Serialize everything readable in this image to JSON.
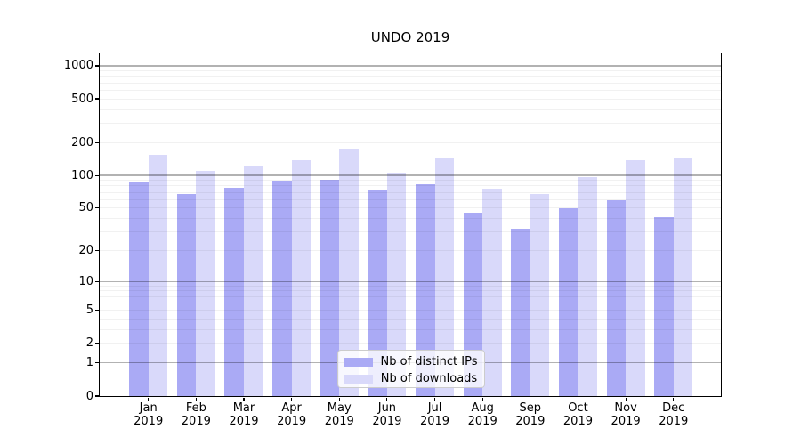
{
  "chart_data": {
    "type": "bar",
    "title": "UNDO 2019",
    "categories": [
      "Jan",
      "Feb",
      "Mar",
      "Apr",
      "May",
      "Jun",
      "Jul",
      "Aug",
      "Sep",
      "Oct",
      "Nov",
      "Dec"
    ],
    "category_sublabel": "2019",
    "series": [
      {
        "name": "Nb of distinct IPs",
        "color": "#aaaaf5",
        "values": [
          87,
          68,
          77,
          90,
          92,
          73,
          83,
          45,
          32,
          50,
          59,
          41
        ]
      },
      {
        "name": "Nb of downloads",
        "color": "#d9d9fa",
        "values": [
          155,
          111,
          124,
          139,
          176,
          107,
          142,
          76,
          68,
          96,
          138,
          143
        ]
      }
    ],
    "y_axis": {
      "scale": "log1p",
      "ticks": [
        0,
        1,
        2,
        5,
        10,
        20,
        50,
        100,
        200,
        500,
        1000
      ],
      "ylim": [
        0,
        1296
      ],
      "major_gridlines": [
        1,
        10,
        100,
        1000
      ],
      "minor_gridline_decades": [
        1,
        10,
        100
      ]
    },
    "x_axis": {
      "label_line2": "2019"
    },
    "legend": {
      "position": "lower-center",
      "entries": [
        "Nb of distinct IPs",
        "Nb of downloads"
      ]
    },
    "grid": true,
    "colors": {
      "background": "#ffffff",
      "axis": "#000000",
      "major_grid": "#b3b3b3",
      "minor_grid": "#ebebeb"
    }
  }
}
